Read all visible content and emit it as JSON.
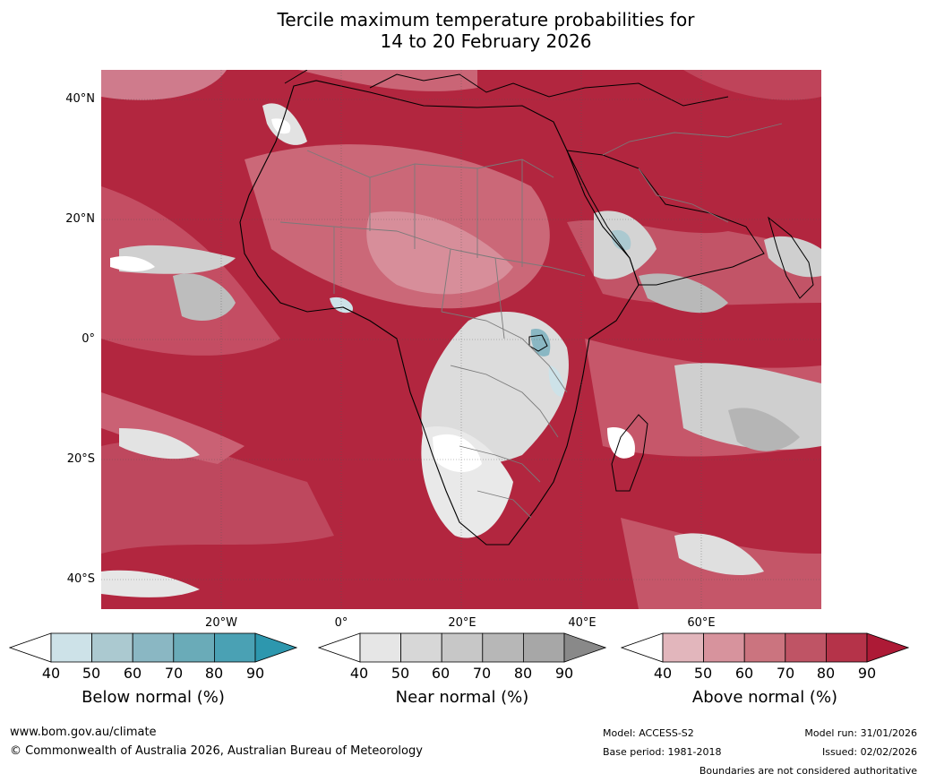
{
  "title": {
    "line1": "Tercile maximum temperature probabilities for",
    "line2": "14 to 20 February 2026"
  },
  "map": {
    "lat_labels": [
      "40°N",
      "20°N",
      "0°",
      "20°S",
      "40°S"
    ],
    "lon_labels": [
      "20°W",
      "0°",
      "20°E",
      "40°E",
      "60°E"
    ]
  },
  "colorbars": {
    "ticks": [
      "40",
      "50",
      "60",
      "70",
      "80",
      "90"
    ],
    "below": {
      "label": "Below normal (%)",
      "colors": [
        "#ffffff",
        "#cde2e8",
        "#abc9d0",
        "#8ab7c3",
        "#6aabb8",
        "#4aa1b4",
        "#2d97ae"
      ]
    },
    "near": {
      "label": "Near normal (%)",
      "colors": [
        "#ffffff",
        "#e6e6e6",
        "#d7d7d7",
        "#c7c7c7",
        "#b7b7b7",
        "#a7a7a7",
        "#898989"
      ]
    },
    "above": {
      "label": "Above normal (%)",
      "colors": [
        "#ffffff",
        "#e2b6bc",
        "#d7939d",
        "#cb747f",
        "#bf5465",
        "#b53349",
        "#ad1a36"
      ]
    }
  },
  "footer": {
    "url": "www.bom.gov.au/climate",
    "copyright": "© Commonwealth of Australia 2026, Australian Bureau of Meteorology",
    "model": "Model: ACCESS-S2",
    "base_period": "Base period: 1981-2018",
    "model_run": "Model run: 31/01/2026",
    "issued": "Issued: 02/02/2026",
    "disclaimer": "Boundaries are not considered authoritative"
  }
}
